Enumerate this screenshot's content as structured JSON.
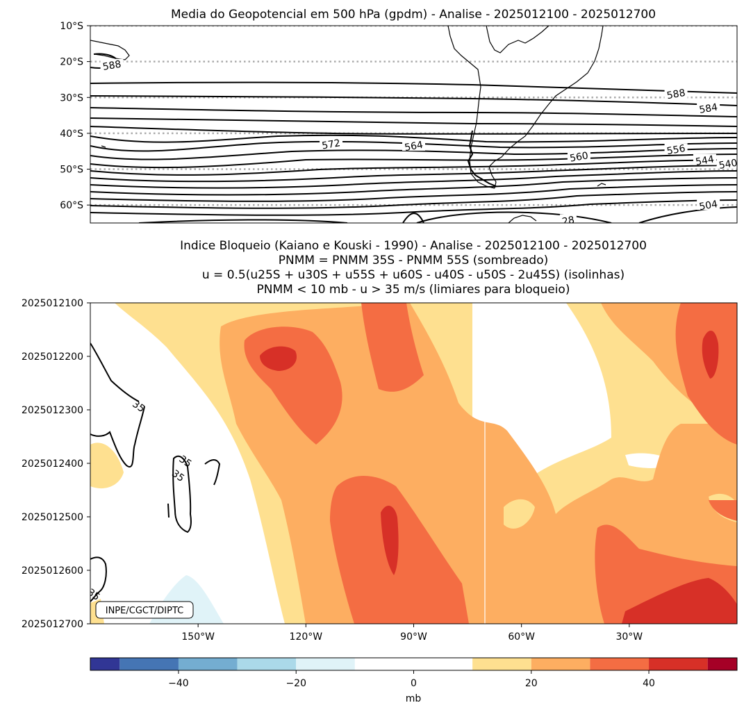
{
  "chart_data": [
    {
      "type": "contour-map",
      "title": "Media do Geopotencial em 500 hPa (gpdm) - Analise - 2025012100 - 2025012700",
      "lat_ticks": [
        "10°S",
        "20°S",
        "30°S",
        "40°S",
        "50°S",
        "60°S"
      ],
      "lat_values": [
        -10,
        -20,
        -30,
        -40,
        -50,
        -60
      ],
      "lat_range": [
        -65,
        -10
      ],
      "lon_range": [
        -180,
        0
      ],
      "gridlines": "dotted latitude lines",
      "contour_labels": [
        {
          "text": "588",
          "lon": -174,
          "lat": -21
        },
        {
          "text": "572",
          "lon": -113,
          "lat": -43
        },
        {
          "text": "564",
          "lon": -90,
          "lat": -43.5
        },
        {
          "text": "560",
          "lon": -44,
          "lat": -46.5
        },
        {
          "text": "556",
          "lon": -17,
          "lat": -44.5
        },
        {
          "text": "544",
          "lon": -9,
          "lat": -47.5
        },
        {
          "text": "540",
          "lon": -2.5,
          "lat": -48.5
        },
        {
          "text": "588",
          "lon": -17,
          "lat": -29
        },
        {
          "text": "584",
          "lon": -8,
          "lat": -33
        },
        {
          "text": "504",
          "lon": -8,
          "lat": -60
        },
        {
          "text": "28",
          "lon": -47,
          "lat": -64.3
        }
      ],
      "contour_levels": [
        588,
        584,
        580,
        576,
        572,
        568,
        564,
        560,
        556,
        552,
        548,
        544,
        540,
        536,
        532,
        528,
        524,
        520,
        516,
        512,
        508,
        504,
        500
      ]
    },
    {
      "type": "heatmap",
      "title_lines": [
        "Indice Bloqueio (Kaiano e Kouski - 1990) - Analise - 2025012100 - 2025012700",
        "PNMM = PNMM 35S - PNMM 55S (sombreado)",
        "u = 0.5(u25S + u30S + u55S + u60S - u40S - u50S - 2u45S) (isolinhas)",
        "PNMM < 10 mb - u > 35 m/s (limiares para bloqueio)"
      ],
      "y_ticks": [
        "2025012100",
        "2025012200",
        "2025012300",
        "2025012400",
        "2025012500",
        "2025012600",
        "2025012700"
      ],
      "x_ticks": [
        "150°W",
        "120°W",
        "90°W",
        "60°W",
        "30°W"
      ],
      "x_tick_values": [
        -150,
        -120,
        -90,
        -60,
        -30
      ],
      "x_range": [
        -180,
        0
      ],
      "time_range_days": [
        0,
        6
      ],
      "contour_label_text": "35",
      "contour_labels": [
        {
          "lon": -166.5,
          "t": 1.93
        },
        {
          "lon": -153.5,
          "t": 2.96
        },
        {
          "lon": -155.5,
          "t": 3.23
        },
        {
          "lon": -179,
          "t": 5.45
        }
      ],
      "colorbar": {
        "label": "mb",
        "ticks": [
          -40,
          -20,
          0,
          20,
          40
        ],
        "range": [
          -55,
          55
        ],
        "bounds": [
          -55,
          -50,
          -40,
          -30,
          -20,
          -10,
          10,
          20,
          30,
          40,
          50,
          55
        ],
        "colors": [
          "#313695",
          "#4575b4",
          "#74add1",
          "#abd9e9",
          "#e0f3f8",
          "#ffffff",
          "#fee090",
          "#fdae61",
          "#f46d43",
          "#d73027",
          "#a50026"
        ]
      }
    }
  ],
  "credit": "INPE/CGCT/DIPTC",
  "colors": {
    "level_0_10": "#ffffff",
    "level_10_20": "#fee090",
    "level_20_30": "#fdae61",
    "level_30_40": "#f46d43",
    "level_40_50": "#d73027",
    "level_neg_10_20": "#e0f3f8"
  }
}
